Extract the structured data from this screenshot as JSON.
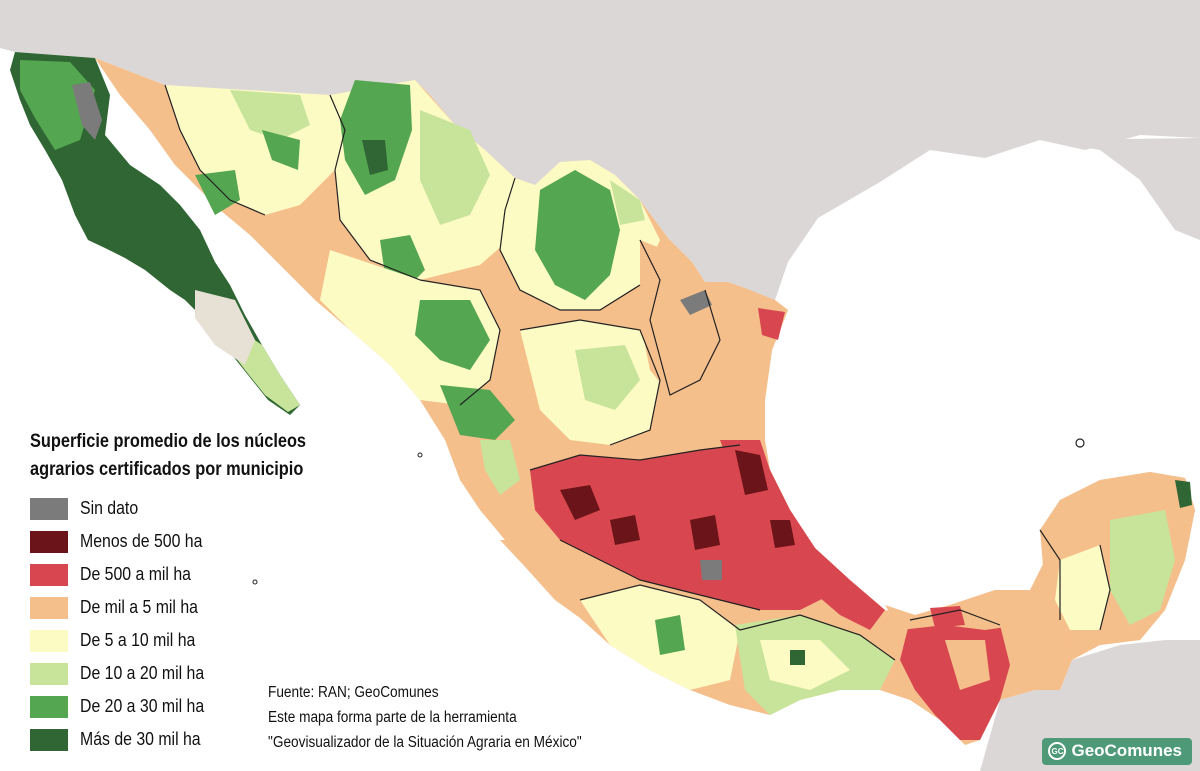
{
  "legend": {
    "title_line1": "Superficie promedio de los núcleos",
    "title_line2": "agrarios certificados por municipio",
    "items": [
      {
        "label": "Sin dato",
        "color": "#7b7b7b"
      },
      {
        "label": "Menos de 500 ha",
        "color": "#6b1419"
      },
      {
        "label": "De 500 a mil ha",
        "color": "#d8474f"
      },
      {
        "label": "De mil a 5 mil ha",
        "color": "#f5bf8c"
      },
      {
        "label": "De 5 a 10 mil ha",
        "color": "#fdfbc4"
      },
      {
        "label": "De 10 a 20 mil ha",
        "color": "#c7e49a"
      },
      {
        "label": "De 20 a 30 mil ha",
        "color": "#55a650"
      },
      {
        "label": "Más de 30 mil ha",
        "color": "#2f6633"
      }
    ]
  },
  "credits": {
    "line1": "Fuente: RAN; GeoComunes",
    "line2": "Este mapa forma parte de la herramienta",
    "line3": "\"Geovisualizador de la Situación Agraria en México\""
  },
  "brand": {
    "icon_text": "GC",
    "name": "GeoComunes"
  },
  "map": {
    "background_land": "#dbd7d7",
    "ocean": "#ffffff",
    "icon": "mexico-choropleth-map"
  }
}
